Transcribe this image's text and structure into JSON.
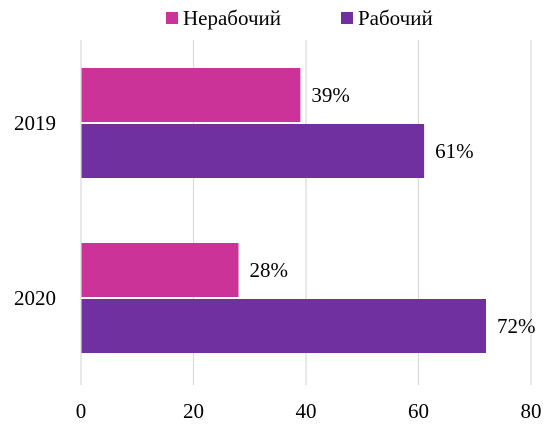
{
  "chart_data": {
    "type": "bar",
    "orientation": "horizontal",
    "categories": [
      "2019",
      "2020"
    ],
    "series": [
      {
        "name": "Нерабочий",
        "values": [
          39,
          28
        ],
        "labels": [
          "39%",
          "28%"
        ],
        "color": "#cc3399"
      },
      {
        "name": "Рабочий",
        "values": [
          61,
          72
        ],
        "labels": [
          "61%",
          "72%"
        ],
        "color": "#7030a0"
      }
    ],
    "xlim": [
      0,
      80
    ],
    "xticks": [
      0,
      20,
      40,
      60,
      80
    ],
    "xtick_labels": [
      "0",
      "20",
      "40",
      "60",
      "80"
    ],
    "title": "",
    "xlabel": "",
    "ylabel": "",
    "grid": "vertical",
    "gridline_color": "#d9d9d9",
    "legend": {
      "position": "top-center",
      "items": [
        {
          "label": "Нерабочий",
          "color": "#cc3399"
        },
        {
          "label": "Рабочий",
          "color": "#7030a0"
        }
      ]
    }
  }
}
